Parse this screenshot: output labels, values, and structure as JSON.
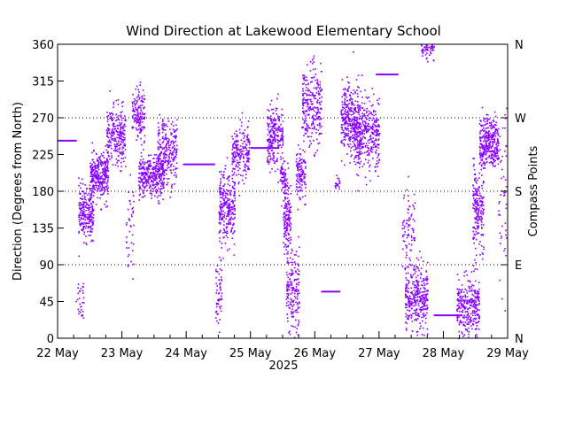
{
  "chart_data": {
    "type": "scatter",
    "title": "Wind Direction at Lakewood Elementary School",
    "ylabel": "Direction (Degrees from North)",
    "y2label": "Compass Points",
    "xlabel": "2025",
    "ylim": [
      0,
      360
    ],
    "xlim": [
      0,
      7
    ],
    "yticks": [
      0,
      45,
      90,
      135,
      180,
      225,
      270,
      315,
      360
    ],
    "ytick_labels": [
      "0",
      "45",
      "90",
      "135",
      "180",
      "225",
      "270",
      "315",
      "360"
    ],
    "compass_ticks": [
      {
        "value": 0,
        "label": "N"
      },
      {
        "value": 90,
        "label": "E"
      },
      {
        "value": 180,
        "label": "S"
      },
      {
        "value": 270,
        "label": "W"
      },
      {
        "value": 360,
        "label": "N"
      }
    ],
    "x_tick_labels": [
      "22 May",
      "23 May",
      "24 May",
      "25 May",
      "26 May",
      "27 May",
      "28 May",
      "29 May"
    ],
    "grid": "dotted horizontal at 90, 180, 270",
    "marker_color": "#8800ff",
    "flat_segments": [
      {
        "x0": 0.0,
        "x1": 0.3,
        "y": 242
      },
      {
        "x0": 1.95,
        "x1": 2.45,
        "y": 213
      },
      {
        "x0": 3.0,
        "x1": 3.45,
        "y": 233
      },
      {
        "x0": 4.1,
        "x1": 4.4,
        "y": 57
      },
      {
        "x0": 4.95,
        "x1": 5.3,
        "y": 323
      },
      {
        "x0": 5.85,
        "x1": 6.3,
        "y": 28
      }
    ],
    "clusters": [
      {
        "x0": 0.28,
        "x1": 0.4,
        "center": 50,
        "spread": 25,
        "n": 30
      },
      {
        "x0": 0.32,
        "x1": 0.55,
        "center": 155,
        "spread": 28,
        "n": 240
      },
      {
        "x0": 0.5,
        "x1": 0.78,
        "center": 198,
        "spread": 25,
        "n": 300
      },
      {
        "x0": 0.75,
        "x1": 1.05,
        "center": 248,
        "spread": 32,
        "n": 260
      },
      {
        "x0": 1.05,
        "x1": 1.18,
        "center": 140,
        "spread": 70,
        "n": 40
      },
      {
        "x0": 1.15,
        "x1": 1.35,
        "center": 275,
        "spread": 30,
        "n": 150
      },
      {
        "x0": 1.25,
        "x1": 1.65,
        "center": 198,
        "spread": 22,
        "n": 340
      },
      {
        "x0": 1.55,
        "x1": 1.85,
        "center": 230,
        "spread": 35,
        "n": 260
      },
      {
        "x0": 2.45,
        "x1": 2.55,
        "center": 60,
        "spread": 40,
        "n": 60
      },
      {
        "x0": 2.5,
        "x1": 2.75,
        "center": 160,
        "spread": 45,
        "n": 280
      },
      {
        "x0": 2.7,
        "x1": 2.98,
        "center": 225,
        "spread": 30,
        "n": 200
      },
      {
        "x0": 3.25,
        "x1": 3.5,
        "center": 250,
        "spread": 32,
        "n": 230
      },
      {
        "x0": 3.45,
        "x1": 3.55,
        "center": 200,
        "spread": 20,
        "n": 60
      },
      {
        "x0": 3.5,
        "x1": 3.62,
        "center": 150,
        "spread": 45,
        "n": 160
      },
      {
        "x0": 3.55,
        "x1": 3.75,
        "center": 60,
        "spread": 45,
        "n": 180
      },
      {
        "x0": 3.7,
        "x1": 3.85,
        "center": 200,
        "spread": 30,
        "n": 120
      },
      {
        "x0": 3.8,
        "x1": 4.1,
        "center": 285,
        "spread": 45,
        "n": 260
      },
      {
        "x0": 4.3,
        "x1": 4.38,
        "center": 190,
        "spread": 8,
        "n": 20
      },
      {
        "x0": 4.4,
        "x1": 4.7,
        "center": 268,
        "spread": 40,
        "n": 320
      },
      {
        "x0": 4.6,
        "x1": 5.0,
        "center": 250,
        "spread": 40,
        "n": 360
      },
      {
        "x0": 5.35,
        "x1": 5.55,
        "center": 130,
        "spread": 55,
        "n": 80
      },
      {
        "x0": 5.4,
        "x1": 5.75,
        "center": 50,
        "spread": 35,
        "n": 340
      },
      {
        "x0": 5.65,
        "x1": 5.85,
        "center": 355,
        "spread": 12,
        "n": 50
      },
      {
        "x0": 6.2,
        "x1": 6.55,
        "center": 40,
        "spread": 30,
        "n": 300
      },
      {
        "x0": 6.45,
        "x1": 6.62,
        "center": 160,
        "spread": 50,
        "n": 200
      },
      {
        "x0": 6.55,
        "x1": 6.85,
        "center": 240,
        "spread": 28,
        "n": 330
      },
      {
        "x0": 6.85,
        "x1": 6.98,
        "center": 180,
        "spread": 90,
        "n": 50
      }
    ]
  }
}
